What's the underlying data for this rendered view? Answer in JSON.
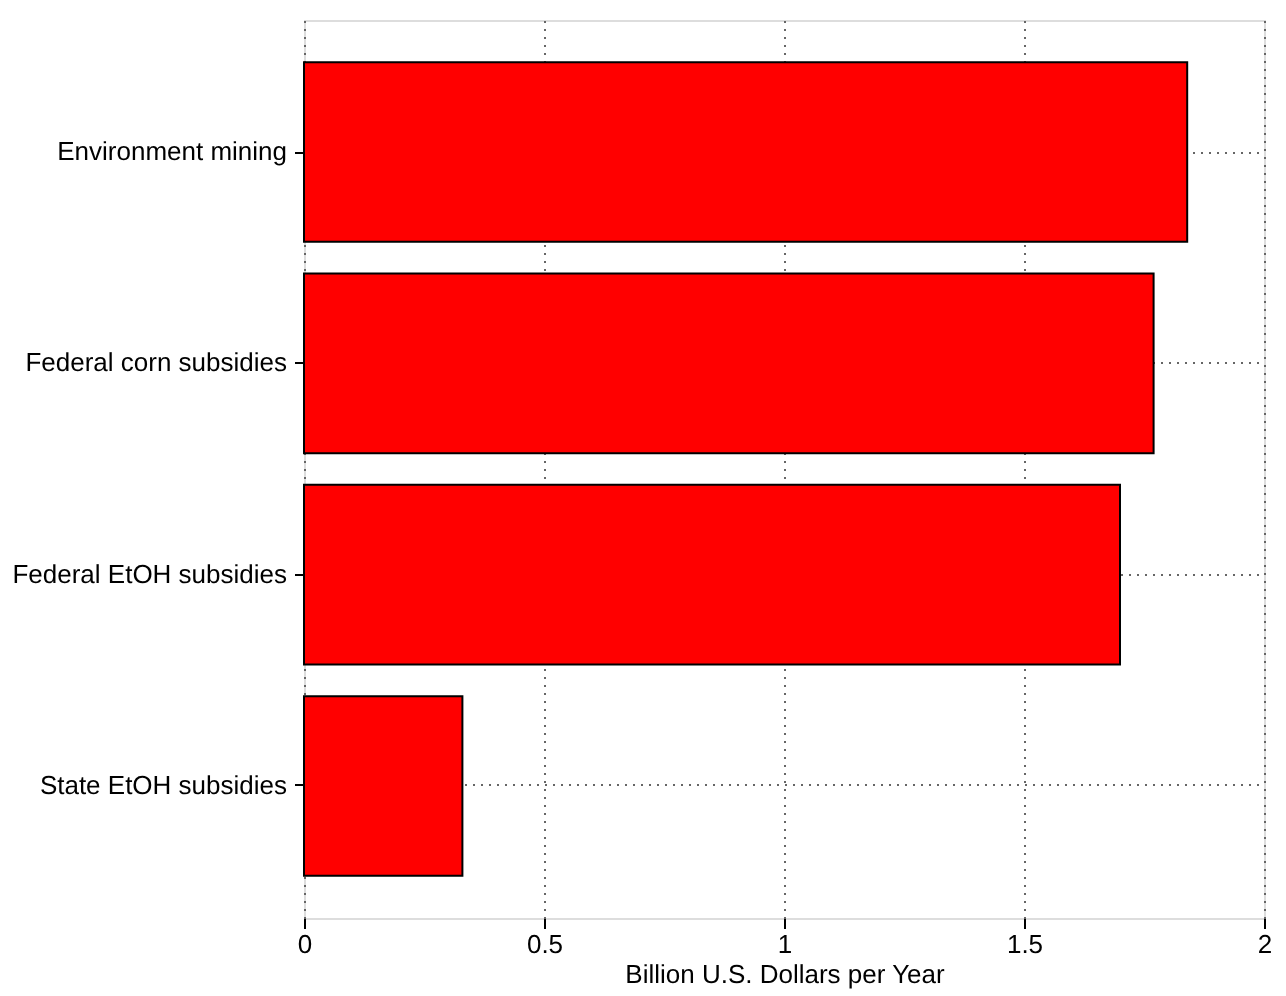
{
  "chart_data": {
    "type": "bar",
    "orientation": "horizontal",
    "categories": [
      "Environment mining",
      "Federal corn subsidies",
      "Federal EtOH subsidies",
      "State EtOH subsidies"
    ],
    "values": [
      1.84,
      1.77,
      1.7,
      0.33
    ],
    "color": "#ff0000",
    "xlabel": "Billion U.S. Dollars per Year",
    "xlim": [
      0,
      2
    ],
    "xticks": [
      0,
      0.5,
      1,
      1.5,
      2
    ],
    "grid": true
  }
}
